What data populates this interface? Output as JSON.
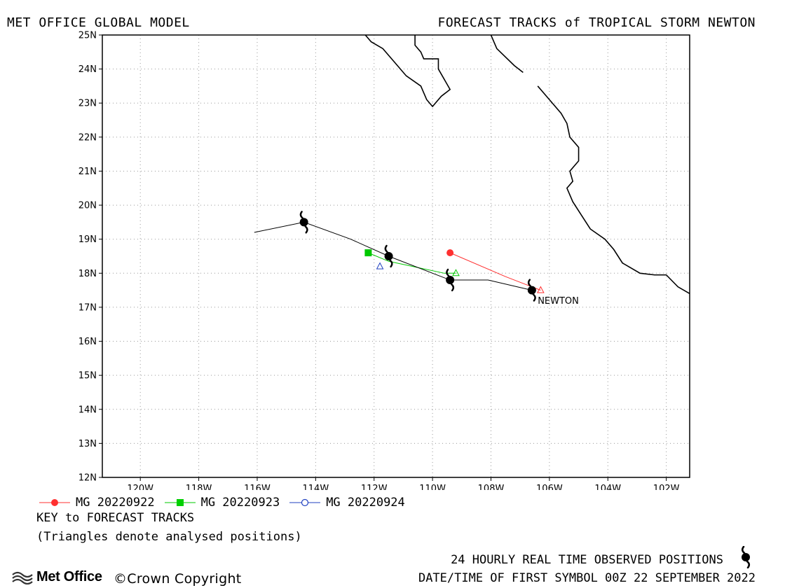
{
  "header": {
    "left_title": "MET OFFICE GLOBAL MODEL",
    "right_title": "FORECAST TRACKS of TROPICAL STORM NEWTON"
  },
  "chart_data": {
    "type": "map",
    "lon_range": [
      -121.3,
      -101.2
    ],
    "lat_range": [
      12,
      25
    ],
    "lat_ticks": [
      "12N",
      "13N",
      "14N",
      "15N",
      "16N",
      "17N",
      "18N",
      "19N",
      "20N",
      "21N",
      "22N",
      "23N",
      "24N",
      "25N"
    ],
    "lon_ticks": [
      "120W",
      "118W",
      "116W",
      "114W",
      "112W",
      "110W",
      "108W",
      "106W",
      "104W",
      "102W"
    ],
    "grid": true,
    "colors": {
      "observed": "#000000",
      "mg_20220922": "#ff3030",
      "mg_20220923": "#00c800",
      "mg_20220924": "#2040c0",
      "coast": "#000000"
    },
    "observed_track": [
      {
        "lon": -106.6,
        "lat": 17.5
      },
      {
        "lon": -108.1,
        "lat": 17.8
      },
      {
        "lon": -109.4,
        "lat": 17.8
      },
      {
        "lon": -111.5,
        "lat": 18.5
      },
      {
        "lon": -112.8,
        "lat": 19.0
      },
      {
        "lon": -114.4,
        "lat": 19.5
      },
      {
        "lon": -116.1,
        "lat": 19.2
      }
    ],
    "observed_symbols": [
      {
        "lon": -106.6,
        "lat": 17.5
      },
      {
        "lon": -109.4,
        "lat": 17.8
      },
      {
        "lon": -111.5,
        "lat": 18.5
      },
      {
        "lon": -114.4,
        "lat": 19.5
      }
    ],
    "forecast_tracks": [
      {
        "name": "MG 20220922",
        "symbol": "circle-filled",
        "analysed": {
          "lon": -106.3,
          "lat": 17.5
        },
        "points": [
          {
            "lon": -106.3,
            "lat": 17.5
          },
          {
            "lon": -107.5,
            "lat": 17.9
          },
          {
            "lon": -109.4,
            "lat": 18.6
          }
        ]
      },
      {
        "name": "MG 20220923",
        "symbol": "square-filled",
        "analysed": {
          "lon": -109.2,
          "lat": 18.0
        },
        "points": [
          {
            "lon": -109.2,
            "lat": 18.0
          },
          {
            "lon": -109.6,
            "lat": 18.0
          },
          {
            "lon": -111.5,
            "lat": 18.35
          },
          {
            "lon": -112.2,
            "lat": 18.6
          }
        ]
      },
      {
        "name": "MG 20220924",
        "symbol": "circle-open",
        "analysed": {
          "lon": -111.8,
          "lat": 18.2
        },
        "points": [
          {
            "lon": -111.8,
            "lat": 18.2
          }
        ]
      }
    ],
    "storm_label": {
      "text": "NEWTON",
      "lon": -106.4,
      "lat": 17.2
    },
    "coastlines": [
      [
        [
          -112.3,
          25
        ],
        [
          -112.1,
          24.8
        ],
        [
          -111.7,
          24.6
        ],
        [
          -111.3,
          24.2
        ],
        [
          -110.9,
          23.8
        ],
        [
          -110.4,
          23.5
        ],
        [
          -110.2,
          23.1
        ],
        [
          -110.0,
          22.9
        ],
        [
          -109.7,
          23.2
        ],
        [
          -109.4,
          23.4
        ],
        [
          -109.6,
          23.7
        ],
        [
          -109.8,
          24.0
        ],
        [
          -109.8,
          24.3
        ],
        [
          -110.3,
          24.3
        ],
        [
          -110.4,
          24.5
        ],
        [
          -110.6,
          24.7
        ],
        [
          -110.6,
          25
        ]
      ],
      [
        [
          -108.0,
          25
        ],
        [
          -107.8,
          24.6
        ],
        [
          -107.2,
          24.1
        ],
        [
          -106.9,
          23.9
        ]
      ],
      [
        [
          -106.4,
          23.5
        ],
        [
          -106.0,
          23.1
        ],
        [
          -105.6,
          22.7
        ],
        [
          -105.4,
          22.4
        ],
        [
          -105.3,
          22.0
        ],
        [
          -105.0,
          21.7
        ],
        [
          -105.0,
          21.3
        ],
        [
          -105.3,
          21.0
        ],
        [
          -105.2,
          20.7
        ],
        [
          -105.4,
          20.5
        ],
        [
          -105.2,
          20.1
        ],
        [
          -104.9,
          19.7
        ],
        [
          -104.6,
          19.3
        ],
        [
          -104.1,
          19.0
        ],
        [
          -103.8,
          18.7
        ],
        [
          -103.5,
          18.3
        ],
        [
          -102.9,
          18.0
        ],
        [
          -102.4,
          17.95
        ],
        [
          -102.0,
          17.95
        ],
        [
          -101.6,
          17.6
        ],
        [
          -101.2,
          17.4
        ]
      ]
    ]
  },
  "legend": {
    "items": [
      {
        "label": "MG 20220922"
      },
      {
        "label": "MG 20220923"
      },
      {
        "label": "MG 20220924"
      }
    ],
    "key_title": "KEY to FORECAST TRACKS",
    "key_note": "(Triangles denote analysed positions)"
  },
  "footer": {
    "logo_text": "Met Office",
    "copyright": "©Crown Copyright",
    "observed_positions": "24 HOURLY REAL TIME OBSERVED POSITIONS",
    "first_symbol": "DATE/TIME OF FIRST SYMBOL 00Z 22 SEPTEMBER 2022"
  }
}
